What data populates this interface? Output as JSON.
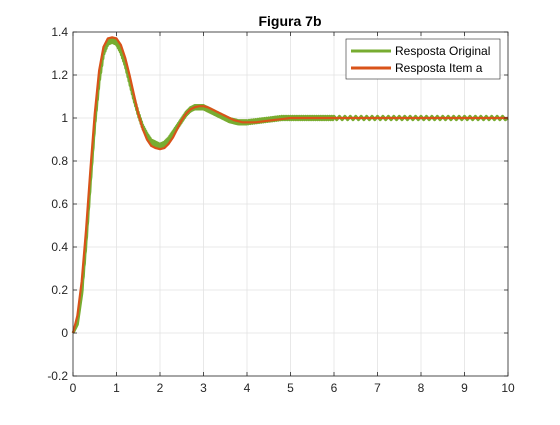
{
  "chart_data": {
    "type": "line",
    "title": "Figura 7b",
    "xlabel": "",
    "ylabel": "",
    "xlim": [
      0,
      10
    ],
    "ylim": [
      -0.2,
      1.4
    ],
    "x_ticks": [
      0,
      1,
      2,
      3,
      4,
      5,
      6,
      7,
      8,
      9,
      10
    ],
    "x_tick_labels": [
      "0",
      "1",
      "2",
      "3",
      "4",
      "5",
      "6",
      "7",
      "8",
      "9",
      "10"
    ],
    "y_ticks": [
      -0.2,
      0,
      0.2,
      0.4,
      0.6,
      0.8,
      1,
      1.2,
      1.4
    ],
    "y_tick_labels": [
      "-0.2",
      "0",
      "0.2",
      "0.4",
      "0.6",
      "0.8",
      "1",
      "1.2",
      "1.4"
    ],
    "grid": true,
    "legend_position": "top-right",
    "series": [
      {
        "name": "Resposta Original",
        "color": "#77AC30",
        "noisy": true,
        "x": [
          0,
          0.1,
          0.2,
          0.3,
          0.4,
          0.5,
          0.6,
          0.7,
          0.8,
          0.9,
          1.0,
          1.1,
          1.2,
          1.3,
          1.4,
          1.5,
          1.6,
          1.7,
          1.8,
          1.9,
          2.0,
          2.1,
          2.2,
          2.3,
          2.4,
          2.5,
          2.6,
          2.7,
          2.8,
          2.9,
          3.0,
          3.1,
          3.2,
          3.3,
          3.4,
          3.5,
          3.6,
          3.7,
          3.8,
          3.9,
          4.0,
          4.2,
          4.4,
          4.6,
          4.8,
          5.0,
          5.2,
          5.4,
          5.6,
          5.8,
          6.0,
          6.5,
          7.0,
          7.5,
          8.0,
          8.5,
          9.0,
          9.5,
          10.0
        ],
        "y": [
          0.0,
          0.04,
          0.18,
          0.42,
          0.7,
          0.97,
          1.17,
          1.3,
          1.35,
          1.36,
          1.35,
          1.31,
          1.25,
          1.17,
          1.09,
          1.02,
          0.96,
          0.92,
          0.89,
          0.88,
          0.87,
          0.88,
          0.9,
          0.93,
          0.96,
          0.99,
          1.02,
          1.04,
          1.05,
          1.05,
          1.05,
          1.04,
          1.03,
          1.02,
          1.01,
          1.0,
          0.99,
          0.985,
          0.98,
          0.98,
          0.98,
          0.985,
          0.99,
          0.995,
          1.0,
          1.0,
          1.0,
          1.0,
          1.0,
          1.0,
          1.0,
          1.0,
          1.0,
          1.0,
          1.0,
          1.0,
          1.0,
          1.0,
          1.0
        ]
      },
      {
        "name": "Resposta Item a",
        "color": "#D95319",
        "noisy": false,
        "x": [
          0,
          0.1,
          0.2,
          0.3,
          0.4,
          0.5,
          0.6,
          0.7,
          0.8,
          0.9,
          1.0,
          1.1,
          1.2,
          1.3,
          1.4,
          1.5,
          1.6,
          1.7,
          1.8,
          1.9,
          2.0,
          2.1,
          2.2,
          2.3,
          2.4,
          2.5,
          2.6,
          2.7,
          2.8,
          2.9,
          3.0,
          3.1,
          3.2,
          3.3,
          3.4,
          3.5,
          3.6,
          3.7,
          3.8,
          3.9,
          4.0,
          4.2,
          4.4,
          4.6,
          4.8,
          5.0,
          5.2,
          5.4,
          5.6,
          5.8,
          6.0,
          6.5,
          7.0,
          7.5,
          8.0,
          8.5,
          9.0,
          9.5,
          10.0
        ],
        "y": [
          0.0,
          0.08,
          0.24,
          0.48,
          0.76,
          1.02,
          1.22,
          1.33,
          1.37,
          1.375,
          1.37,
          1.34,
          1.28,
          1.2,
          1.11,
          1.02,
          0.95,
          0.9,
          0.87,
          0.86,
          0.855,
          0.86,
          0.88,
          0.91,
          0.95,
          0.99,
          1.02,
          1.04,
          1.05,
          1.055,
          1.055,
          1.05,
          1.04,
          1.03,
          1.02,
          1.01,
          1.0,
          0.99,
          0.985,
          0.98,
          0.98,
          0.98,
          0.985,
          0.99,
          0.995,
          1.0,
          1.0,
          1.0,
          1.0,
          1.0,
          1.0,
          1.0,
          1.0,
          1.0,
          1.0,
          1.0,
          1.0,
          1.0,
          1.0
        ]
      }
    ]
  }
}
